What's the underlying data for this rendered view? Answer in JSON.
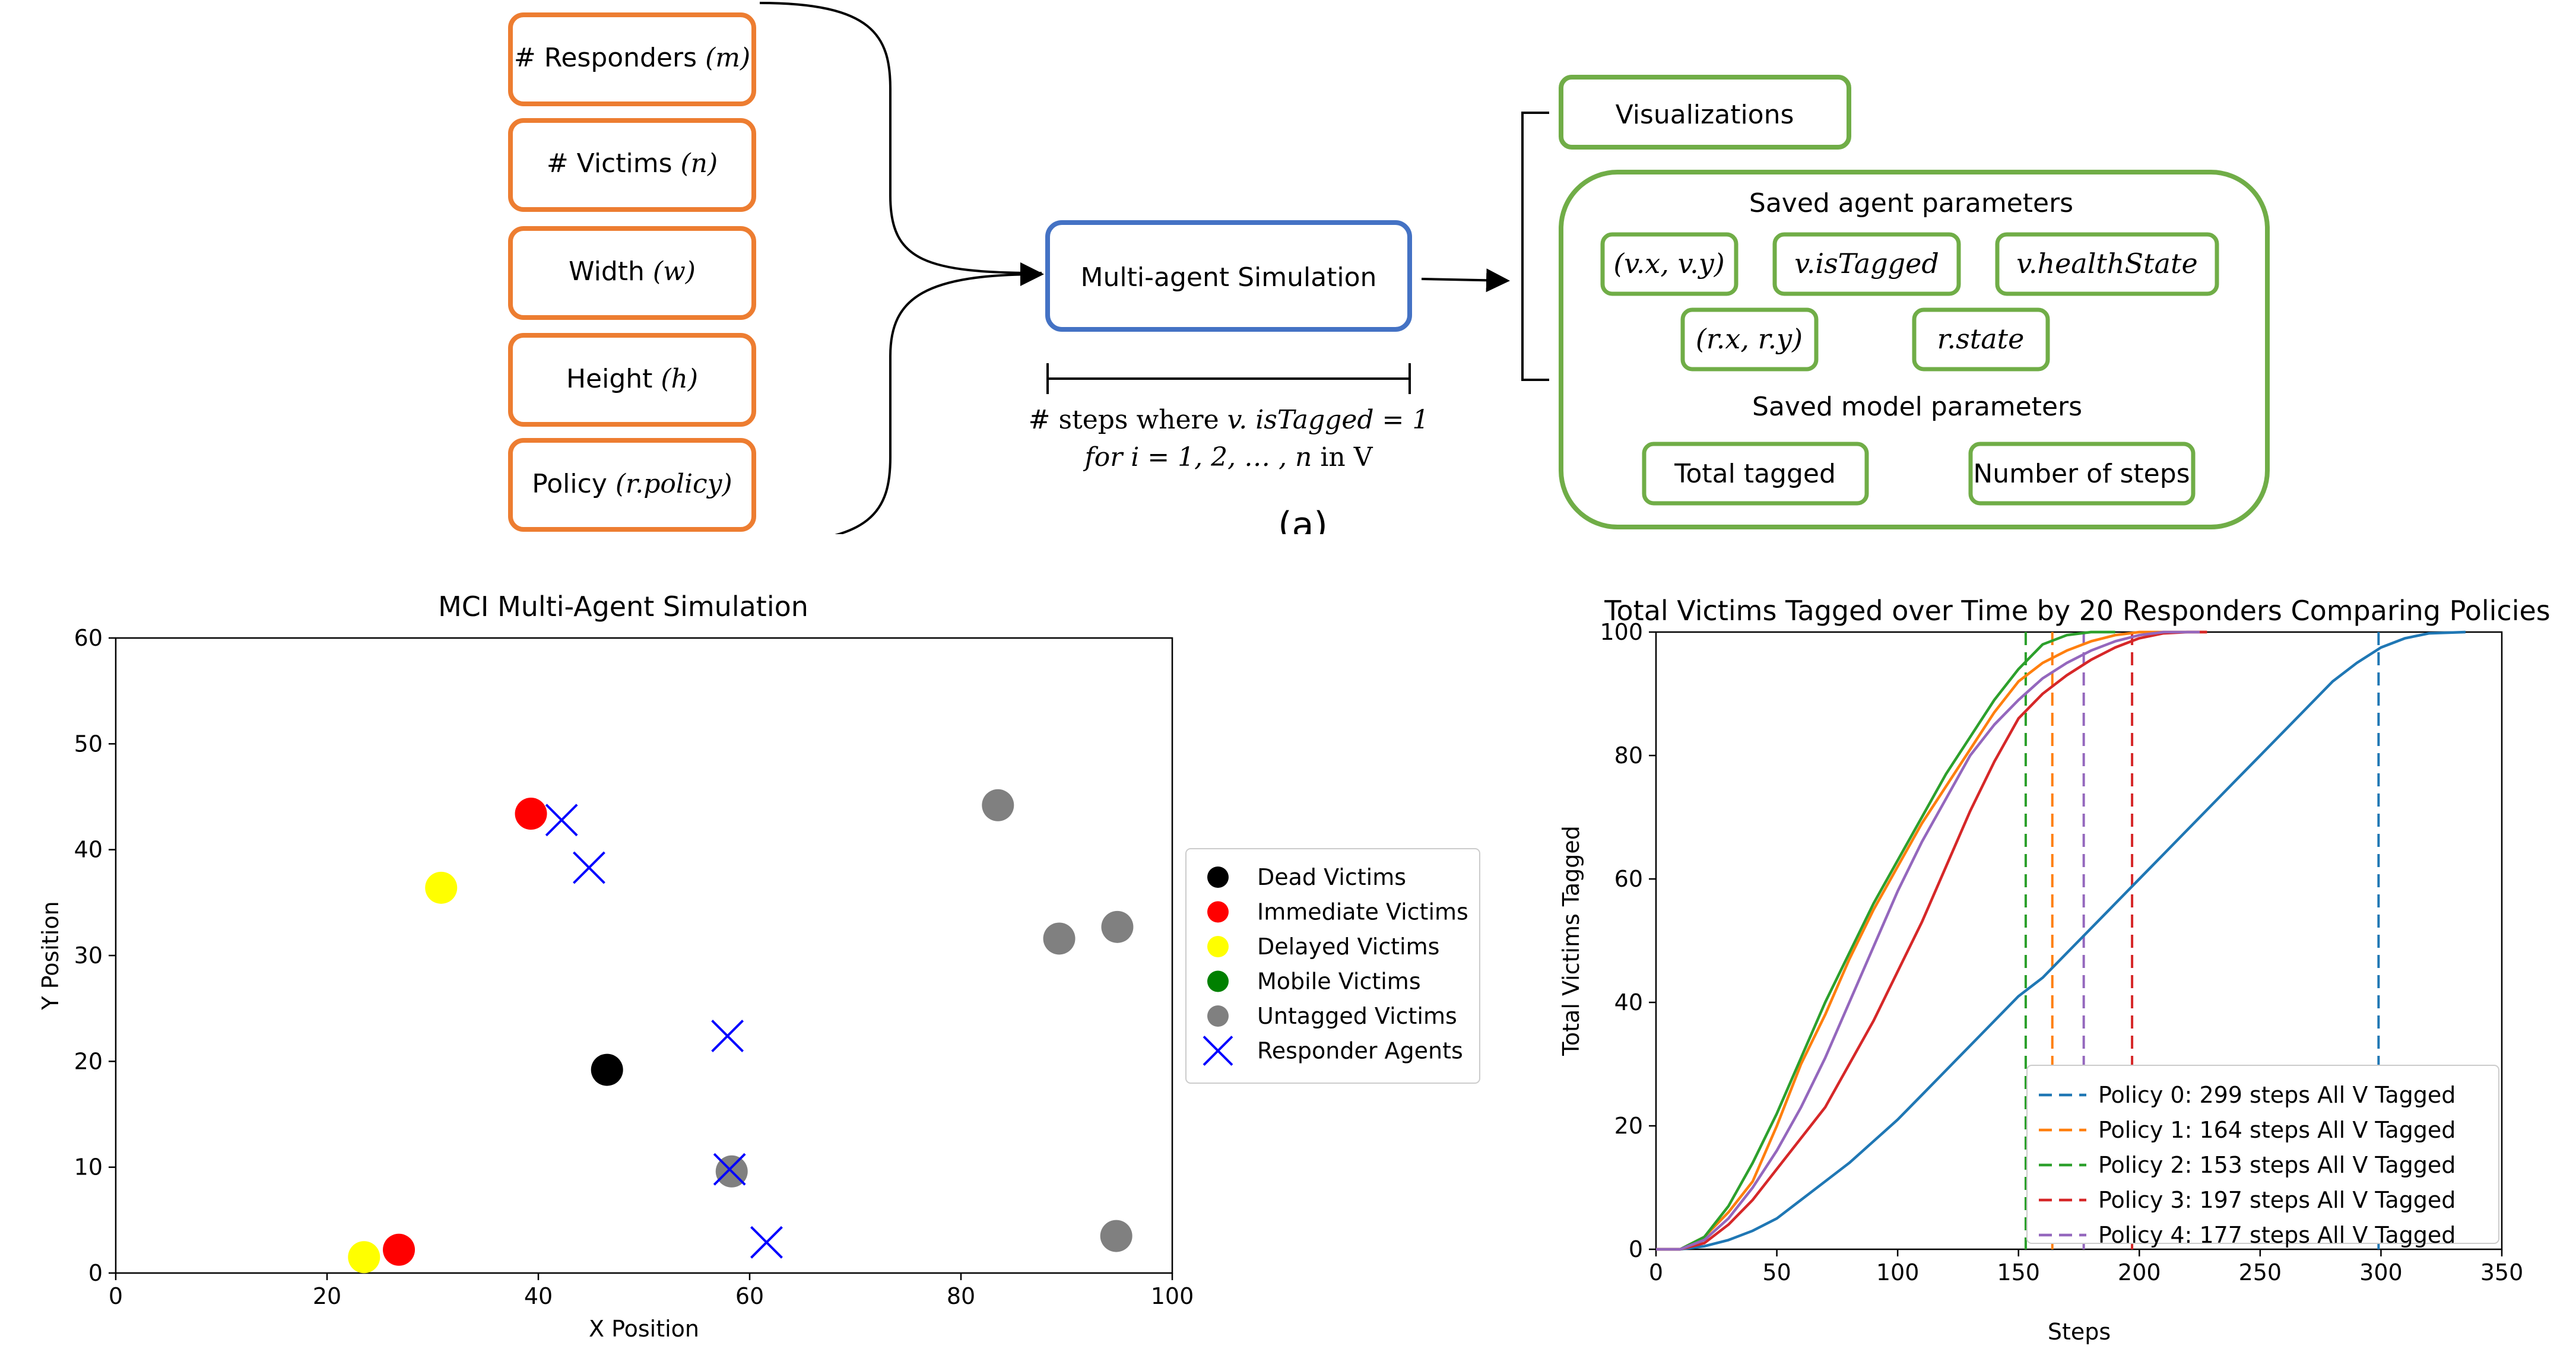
{
  "diagram": {
    "inputs": [
      {
        "text": "# Responders ",
        "math": "(m)"
      },
      {
        "text": "# Victims ",
        "math": "(n)"
      },
      {
        "text": "Width ",
        "math": "(w)"
      },
      {
        "text": "Height ",
        "math": "(h)"
      },
      {
        "text": "Policy ",
        "math": "(r.policy)"
      }
    ],
    "simulation_label": "Multi-agent Simulation",
    "steps_line1_a": "# steps where ",
    "steps_line1_b": "v. isTagged = 1",
    "steps_line2_a": "for i = 1, 2, … , n",
    "steps_line2_b": " in V",
    "caption": "(a)",
    "visualizations": "Visualizations",
    "saved_agent_title": "Saved agent parameters",
    "agent_params": [
      "(v.x, v.y)",
      "v.isTagged",
      "v.healthState",
      "(r.x, r.y)",
      "r.state"
    ],
    "saved_model_title": "Saved model parameters",
    "model_params": [
      "Total tagged",
      "Number of steps"
    ],
    "colors": {
      "input_border": "#ed7d31",
      "sim_border": "#4472c4",
      "output_border": "#70ad47"
    }
  },
  "chart_data": [
    {
      "type": "scatter",
      "title": "MCI Multi-Agent Simulation",
      "xlabel": "X Position",
      "ylabel": "Y Position",
      "xlim": [
        0,
        100
      ],
      "ylim": [
        0,
        60
      ],
      "xticks": [
        0,
        20,
        40,
        60,
        80,
        100
      ],
      "yticks": [
        0,
        10,
        20,
        30,
        40,
        50,
        60
      ],
      "legend_position": "outside-right",
      "series": [
        {
          "name": "Dead Victims",
          "color": "#000000",
          "marker": "circle",
          "points": [
            [
              46.5,
              19.2
            ]
          ]
        },
        {
          "name": "Immediate Victims",
          "color": "#ff0000",
          "marker": "circle",
          "points": [
            [
              39.3,
              43.4
            ],
            [
              26.8,
              2.2
            ]
          ]
        },
        {
          "name": "Delayed Victims",
          "color": "#ffff00",
          "marker": "circle",
          "points": [
            [
              30.8,
              36.4
            ],
            [
              23.5,
              1.5
            ]
          ]
        },
        {
          "name": "Mobile Victims",
          "color": "#008000",
          "marker": "circle",
          "points": []
        },
        {
          "name": "Untagged Victims",
          "color": "#808080",
          "marker": "circle",
          "points": [
            [
              83.5,
              44.2
            ],
            [
              89.3,
              31.6
            ],
            [
              94.8,
              32.7
            ],
            [
              58.3,
              9.6
            ],
            [
              94.7,
              3.5
            ]
          ]
        },
        {
          "name": "Responder Agents",
          "color": "#0000ff",
          "marker": "x",
          "points": [
            [
              42.2,
              42.8
            ],
            [
              44.8,
              38.3
            ],
            [
              57.9,
              22.4
            ],
            [
              58.1,
              9.8
            ],
            [
              61.6,
              2.9
            ]
          ]
        }
      ]
    },
    {
      "type": "line",
      "title": "Total Victims Tagged over Time by 20 Responders Comparing Policies",
      "xlabel": "Steps",
      "ylabel": "Total Victims Tagged",
      "xlim": [
        0,
        350
      ],
      "ylim": [
        0,
        100
      ],
      "xticks": [
        0,
        50,
        100,
        150,
        200,
        250,
        300,
        350
      ],
      "yticks": [
        0,
        20,
        40,
        60,
        80,
        100
      ],
      "legend_position": "lower-right",
      "series": [
        {
          "name": "Policy 0: 299 steps All V Tagged",
          "color": "#1f77b4",
          "vline": 299,
          "x": [
            0,
            10,
            20,
            30,
            40,
            50,
            60,
            70,
            80,
            90,
            100,
            110,
            120,
            130,
            140,
            150,
            160,
            170,
            180,
            190,
            200,
            210,
            220,
            230,
            240,
            250,
            260,
            270,
            280,
            290,
            300,
            310,
            320,
            335
          ],
          "y": [
            0,
            0,
            0.5,
            1.5,
            3,
            5,
            8,
            11,
            14,
            17.5,
            21,
            25,
            29,
            33,
            37,
            41,
            44,
            48,
            52,
            56,
            60,
            64,
            68,
            72,
            76,
            80,
            84,
            88,
            92,
            95,
            97.5,
            99,
            99.8,
            100
          ]
        },
        {
          "name": "Policy 1: 164 steps All V Tagged",
          "color": "#ff7f0e",
          "vline": 164,
          "x": [
            0,
            10,
            20,
            30,
            40,
            50,
            60,
            70,
            80,
            90,
            100,
            110,
            120,
            130,
            140,
            150,
            160,
            170,
            180,
            190,
            200,
            228
          ],
          "y": [
            0,
            0,
            2,
            6,
            11,
            20,
            30,
            38,
            47,
            55,
            62,
            69,
            75,
            81,
            87,
            92,
            95,
            97,
            98.5,
            99.5,
            100,
            100
          ]
        },
        {
          "name": "Policy 2: 153 steps All V Tagged",
          "color": "#2ca02c",
          "vline": 153,
          "x": [
            0,
            10,
            20,
            30,
            40,
            50,
            60,
            70,
            80,
            90,
            100,
            110,
            120,
            130,
            140,
            150,
            160,
            170,
            180,
            190
          ],
          "y": [
            0,
            0,
            2,
            7,
            14,
            22,
            31,
            40,
            48,
            56,
            63,
            70,
            77,
            83,
            89,
            94,
            98,
            99.5,
            100,
            100
          ]
        },
        {
          "name": "Policy 3: 197 steps All V Tagged",
          "color": "#d62728",
          "vline": 197,
          "x": [
            0,
            10,
            20,
            30,
            40,
            50,
            60,
            70,
            80,
            90,
            100,
            110,
            120,
            130,
            140,
            150,
            160,
            170,
            180,
            190,
            200,
            210,
            220,
            228
          ],
          "y": [
            0,
            0,
            1,
            4,
            8,
            13,
            18,
            23,
            30,
            37,
            45,
            53,
            62,
            71,
            79,
            86,
            90,
            93,
            95.5,
            97.5,
            99,
            99.8,
            100,
            100
          ]
        },
        {
          "name": "Policy 4: 177 steps All V Tagged",
          "color": "#9467bd",
          "vline": 177,
          "x": [
            0,
            10,
            20,
            30,
            40,
            50,
            60,
            70,
            80,
            90,
            100,
            110,
            120,
            130,
            140,
            150,
            160,
            170,
            180,
            190,
            200,
            210,
            225
          ],
          "y": [
            0,
            0,
            1.5,
            5,
            10,
            16,
            23,
            31,
            40,
            49,
            58,
            66,
            73,
            80,
            85,
            89,
            92.5,
            95,
            97,
            98.5,
            99.5,
            100,
            100
          ]
        }
      ]
    }
  ]
}
